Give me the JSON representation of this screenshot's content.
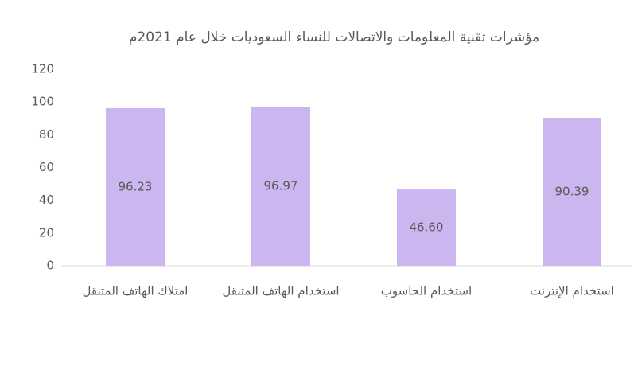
{
  "chart_data": {
    "type": "bar",
    "title": "مؤشرات تقنية المعلومات والاتصالات للنساء السعوديات خلال عام 2021م",
    "categories": [
      "امتلاك الهاتف المتنقل",
      "استخدام الهاتف المتنقل",
      "استخدام الحاسوب",
      "استخدام الإنترنت"
    ],
    "values": [
      96.23,
      96.97,
      46.6,
      90.39
    ],
    "value_labels": [
      "96.23",
      "96.97",
      "46.60",
      "90.39"
    ],
    "color": "#cbb6f0",
    "ylim": [
      0,
      120
    ],
    "yticks": [
      0,
      20,
      40,
      60,
      80,
      100,
      120
    ],
    "grid": false
  }
}
